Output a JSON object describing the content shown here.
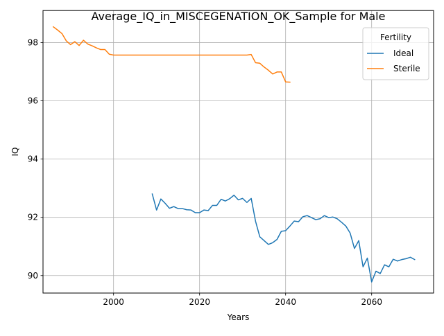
{
  "chart_data": {
    "type": "line",
    "title": "Average_IQ_in_MISCEGENATION_OK_Sample for Male",
    "xlabel": "Years",
    "ylabel": "IQ",
    "xlim": [
      1983.6,
      2074.4
    ],
    "ylim": [
      89.4,
      99.1
    ],
    "xticks": [
      2000,
      2020,
      2040,
      2060
    ],
    "yticks": [
      90,
      92,
      94,
      96,
      98
    ],
    "grid": true,
    "legend": {
      "title": "Fertility",
      "placement": "top-right"
    },
    "series": [
      {
        "name": "Ideal",
        "color": "#1f77b4",
        "x": [
          2009,
          2010,
          2011,
          2012,
          2013,
          2014,
          2015,
          2016,
          2017,
          2018,
          2019,
          2020,
          2021,
          2022,
          2023,
          2024,
          2025,
          2026,
          2027,
          2028,
          2029,
          2030,
          2031,
          2032,
          2033,
          2034,
          2035,
          2036,
          2037,
          2038,
          2039,
          2040,
          2041,
          2042,
          2043,
          2044,
          2045,
          2046,
          2047,
          2048,
          2049,
          2050,
          2051,
          2052,
          2053,
          2054,
          2055,
          2056,
          2057,
          2058,
          2059,
          2060,
          2061,
          2062,
          2063,
          2064,
          2065,
          2066,
          2067,
          2068,
          2069,
          2070
        ],
        "y": [
          92.8,
          92.25,
          92.63,
          92.48,
          92.31,
          92.37,
          92.3,
          92.3,
          92.26,
          92.25,
          92.16,
          92.16,
          92.25,
          92.23,
          92.41,
          92.41,
          92.62,
          92.56,
          92.64,
          92.76,
          92.6,
          92.65,
          92.51,
          92.65,
          91.87,
          91.33,
          91.2,
          91.07,
          91.13,
          91.24,
          91.52,
          91.54,
          91.7,
          91.87,
          91.85,
          92.02,
          92.06,
          91.99,
          91.92,
          91.95,
          92.06,
          91.99,
          92.01,
          91.95,
          91.83,
          91.7,
          91.46,
          90.93,
          91.2,
          90.3,
          90.6,
          89.78,
          90.15,
          90.07,
          90.37,
          90.3,
          90.56,
          90.5,
          90.55,
          90.58,
          90.63,
          90.55
        ]
      },
      {
        "name": "Sterile",
        "color": "#ff7f0e",
        "x": [
          1986,
          1987,
          1988,
          1989,
          1990,
          1991,
          1992,
          1993,
          1994,
          1995,
          1996,
          1997,
          1998,
          1999,
          2000,
          2001,
          2002,
          2003,
          2004,
          2005,
          2006,
          2007,
          2008,
          2009,
          2010,
          2011,
          2012,
          2013,
          2014,
          2015,
          2016,
          2017,
          2018,
          2019,
          2020,
          2021,
          2022,
          2023,
          2024,
          2025,
          2026,
          2027,
          2028,
          2029,
          2030,
          2031,
          2032,
          2033,
          2034,
          2035,
          2036,
          2037,
          2038,
          2039,
          2040,
          2041
        ],
        "y": [
          98.54,
          98.43,
          98.31,
          98.06,
          97.93,
          98.03,
          97.9,
          98.08,
          97.95,
          97.89,
          97.82,
          97.76,
          97.76,
          97.6,
          97.57,
          97.57,
          97.57,
          97.57,
          97.57,
          97.57,
          97.57,
          97.57,
          97.57,
          97.57,
          97.57,
          97.57,
          97.57,
          97.57,
          97.57,
          97.57,
          97.57,
          97.57,
          97.57,
          97.57,
          97.57,
          97.57,
          97.57,
          97.57,
          97.57,
          97.57,
          97.57,
          97.57,
          97.57,
          97.57,
          97.57,
          97.57,
          97.59,
          97.31,
          97.29,
          97.16,
          97.05,
          96.92,
          96.99,
          96.99,
          96.65,
          96.64
        ]
      }
    ]
  }
}
